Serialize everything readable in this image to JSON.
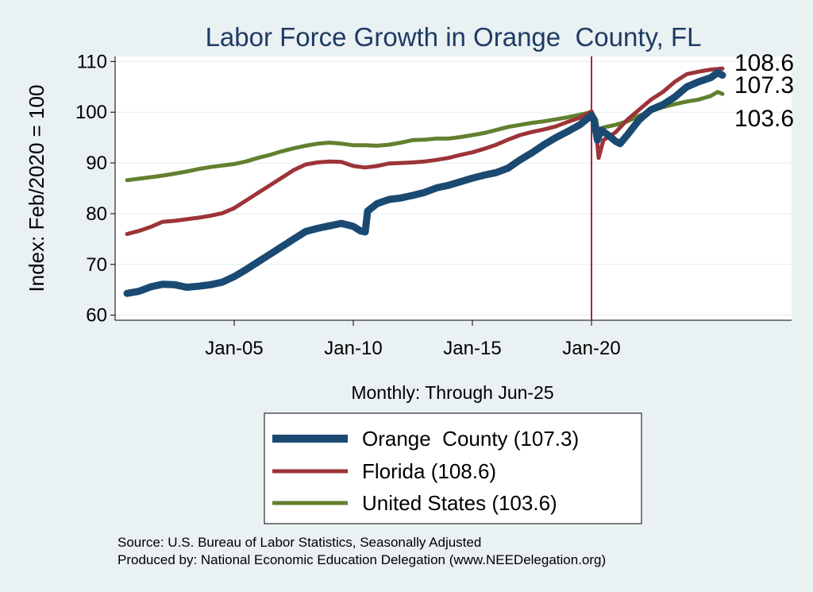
{
  "chart_data": {
    "type": "line",
    "title": "Labor Force Growth in Orange  County, FL",
    "ylabel": "Index: Feb/2020 = 100",
    "xlabel": "Monthly: Through Jun-25",
    "ylim": [
      59,
      111
    ],
    "yticks": [
      60,
      70,
      80,
      90,
      100,
      110
    ],
    "xlim": [
      2000.0,
      2028.4
    ],
    "xticks": [
      {
        "x": 2005.0,
        "label": "Jan-05"
      },
      {
        "x": 2010.0,
        "label": "Jan-10"
      },
      {
        "x": 2015.0,
        "label": "Jan-15"
      },
      {
        "x": 2020.0,
        "label": "Jan-20"
      }
    ],
    "vline": {
      "x": 2020.0,
      "color": "#b0243c"
    },
    "end_labels": [
      "108.6",
      "107.3",
      "103.6"
    ],
    "legend": {
      "placement": "bottom",
      "entries": [
        "Orange  County (107.3)",
        "Florida (108.6)",
        "United States (103.6)"
      ]
    },
    "series": [
      {
        "name": "Orange  County (107.3)",
        "color": "#1a4a72",
        "points": [
          [
            2000.5,
            64.3
          ],
          [
            2001.0,
            64.7
          ],
          [
            2001.5,
            65.6
          ],
          [
            2002.0,
            66.1
          ],
          [
            2002.5,
            66.0
          ],
          [
            2003.0,
            65.5
          ],
          [
            2003.5,
            65.7
          ],
          [
            2004.0,
            66.0
          ],
          [
            2004.5,
            66.5
          ],
          [
            2005.0,
            67.6
          ],
          [
            2005.5,
            69.0
          ],
          [
            2006.0,
            70.5
          ],
          [
            2006.5,
            72.0
          ],
          [
            2007.0,
            73.5
          ],
          [
            2007.5,
            75.0
          ],
          [
            2008.0,
            76.5
          ],
          [
            2008.5,
            77.1
          ],
          [
            2009.0,
            77.6
          ],
          [
            2009.5,
            78.1
          ],
          [
            2010.0,
            77.5
          ],
          [
            2010.3,
            76.6
          ],
          [
            2010.5,
            76.4
          ],
          [
            2010.6,
            80.5
          ],
          [
            2011.0,
            82.0
          ],
          [
            2011.5,
            82.8
          ],
          [
            2012.0,
            83.1
          ],
          [
            2012.5,
            83.6
          ],
          [
            2013.0,
            84.2
          ],
          [
            2013.5,
            85.1
          ],
          [
            2014.0,
            85.6
          ],
          [
            2014.5,
            86.3
          ],
          [
            2015.0,
            87.0
          ],
          [
            2015.5,
            87.6
          ],
          [
            2016.0,
            88.1
          ],
          [
            2016.5,
            89.0
          ],
          [
            2017.0,
            90.6
          ],
          [
            2017.5,
            92.0
          ],
          [
            2018.0,
            93.6
          ],
          [
            2018.5,
            95.0
          ],
          [
            2019.0,
            96.2
          ],
          [
            2019.5,
            97.5
          ],
          [
            2020.0,
            99.4
          ],
          [
            2020.1,
            98.5
          ],
          [
            2020.25,
            94.5
          ],
          [
            2020.4,
            96.5
          ],
          [
            2020.7,
            95.5
          ],
          [
            2021.0,
            94.3
          ],
          [
            2021.2,
            93.8
          ],
          [
            2021.5,
            95.5
          ],
          [
            2022.0,
            98.5
          ],
          [
            2022.5,
            100.5
          ],
          [
            2023.0,
            101.5
          ],
          [
            2023.5,
            103.0
          ],
          [
            2024.0,
            105.0
          ],
          [
            2024.5,
            106.0
          ],
          [
            2025.0,
            106.8
          ],
          [
            2025.3,
            107.8
          ],
          [
            2025.5,
            107.3
          ]
        ]
      },
      {
        "name": "Florida (108.6)",
        "color": "#9c3438",
        "points": [
          [
            2000.5,
            76.0
          ],
          [
            2001.0,
            76.6
          ],
          [
            2001.5,
            77.4
          ],
          [
            2002.0,
            78.4
          ],
          [
            2002.5,
            78.6
          ],
          [
            2003.0,
            78.9
          ],
          [
            2003.5,
            79.2
          ],
          [
            2004.0,
            79.6
          ],
          [
            2004.5,
            80.1
          ],
          [
            2005.0,
            81.1
          ],
          [
            2005.5,
            82.6
          ],
          [
            2006.0,
            84.1
          ],
          [
            2006.5,
            85.6
          ],
          [
            2007.0,
            87.1
          ],
          [
            2007.5,
            88.6
          ],
          [
            2008.0,
            89.7
          ],
          [
            2008.5,
            90.1
          ],
          [
            2009.0,
            90.3
          ],
          [
            2009.5,
            90.2
          ],
          [
            2010.0,
            89.4
          ],
          [
            2010.5,
            89.1
          ],
          [
            2011.0,
            89.4
          ],
          [
            2011.5,
            89.9
          ],
          [
            2012.0,
            90.0
          ],
          [
            2012.5,
            90.1
          ],
          [
            2013.0,
            90.3
          ],
          [
            2013.5,
            90.6
          ],
          [
            2014.0,
            91.0
          ],
          [
            2014.5,
            91.6
          ],
          [
            2015.0,
            92.1
          ],
          [
            2015.5,
            92.8
          ],
          [
            2016.0,
            93.6
          ],
          [
            2016.5,
            94.6
          ],
          [
            2017.0,
            95.5
          ],
          [
            2017.5,
            96.1
          ],
          [
            2018.0,
            96.6
          ],
          [
            2018.5,
            97.2
          ],
          [
            2019.0,
            98.1
          ],
          [
            2019.5,
            98.9
          ],
          [
            2020.0,
            100.2
          ],
          [
            2020.15,
            98.5
          ],
          [
            2020.3,
            91.0
          ],
          [
            2020.5,
            94.5
          ],
          [
            2021.0,
            96.0
          ],
          [
            2021.5,
            98.5
          ],
          [
            2022.0,
            100.5
          ],
          [
            2022.5,
            102.5
          ],
          [
            2023.0,
            104.0
          ],
          [
            2023.5,
            106.0
          ],
          [
            2024.0,
            107.5
          ],
          [
            2024.5,
            108.0
          ],
          [
            2025.0,
            108.4
          ],
          [
            2025.5,
            108.6
          ]
        ]
      },
      {
        "name": "United States (103.6)",
        "color": "#62802e",
        "points": [
          [
            2000.5,
            86.6
          ],
          [
            2001.0,
            86.9
          ],
          [
            2001.5,
            87.2
          ],
          [
            2002.0,
            87.5
          ],
          [
            2002.5,
            87.9
          ],
          [
            2003.0,
            88.3
          ],
          [
            2003.5,
            88.8
          ],
          [
            2004.0,
            89.2
          ],
          [
            2004.5,
            89.5
          ],
          [
            2005.0,
            89.8
          ],
          [
            2005.5,
            90.3
          ],
          [
            2006.0,
            91.0
          ],
          [
            2006.5,
            91.6
          ],
          [
            2007.0,
            92.3
          ],
          [
            2007.5,
            92.9
          ],
          [
            2008.0,
            93.4
          ],
          [
            2008.5,
            93.8
          ],
          [
            2009.0,
            94.0
          ],
          [
            2009.5,
            93.8
          ],
          [
            2010.0,
            93.5
          ],
          [
            2010.5,
            93.5
          ],
          [
            2011.0,
            93.4
          ],
          [
            2011.5,
            93.6
          ],
          [
            2012.0,
            94.0
          ],
          [
            2012.5,
            94.5
          ],
          [
            2013.0,
            94.6
          ],
          [
            2013.5,
            94.8
          ],
          [
            2014.0,
            94.8
          ],
          [
            2014.5,
            95.1
          ],
          [
            2015.0,
            95.5
          ],
          [
            2015.5,
            95.9
          ],
          [
            2016.0,
            96.5
          ],
          [
            2016.5,
            97.1
          ],
          [
            2017.0,
            97.5
          ],
          [
            2017.5,
            97.9
          ],
          [
            2018.0,
            98.2
          ],
          [
            2018.5,
            98.6
          ],
          [
            2019.0,
            99.0
          ],
          [
            2019.5,
            99.5
          ],
          [
            2020.0,
            100.0
          ],
          [
            2020.2,
            98.5
          ],
          [
            2020.3,
            95.5
          ],
          [
            2020.5,
            97.0
          ],
          [
            2021.0,
            97.5
          ],
          [
            2021.5,
            98.2
          ],
          [
            2022.0,
            99.3
          ],
          [
            2022.5,
            100.2
          ],
          [
            2023.0,
            101.0
          ],
          [
            2023.5,
            101.6
          ],
          [
            2024.0,
            102.1
          ],
          [
            2024.5,
            102.5
          ],
          [
            2025.0,
            103.2
          ],
          [
            2025.3,
            104.0
          ],
          [
            2025.5,
            103.6
          ]
        ]
      }
    ]
  },
  "footer": {
    "source": "Source: U.S. Bureau of Labor Statistics, Seasonally Adjusted",
    "produced": "Produced by: National Economic Education Delegation (www.NEEDelegation.org)"
  }
}
